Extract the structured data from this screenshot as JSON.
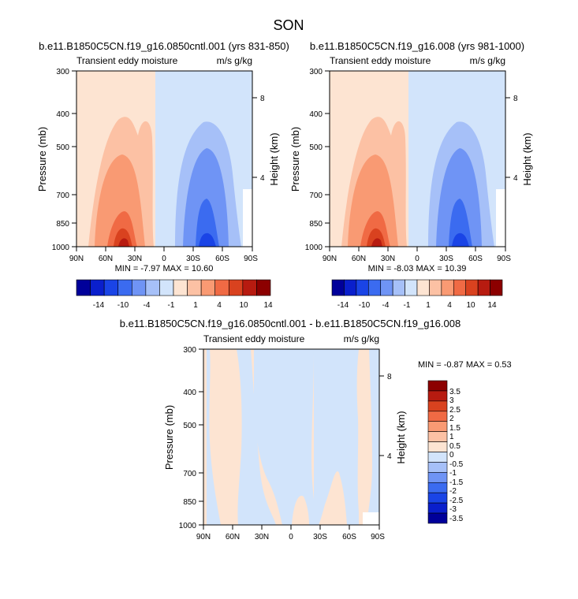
{
  "figure": {
    "title": "SON"
  },
  "colors": {
    "panel_palette": [
      "#00009a",
      "#0a1fcc",
      "#1a44e6",
      "#3b6bf0",
      "#6f94f5",
      "#a6c0f8",
      "#d2e4fb",
      "#fde4d2",
      "#fcc1a4",
      "#f99a73",
      "#f06a44",
      "#d9421f",
      "#b71b10",
      "#8c0000"
    ],
    "diff_palette": [
      "#00009a",
      "#0a1fcc",
      "#1a44e6",
      "#3b6bf0",
      "#6f94f5",
      "#a6c0f8",
      "#d2e4fb",
      "#fde4d2",
      "#fcc1a4",
      "#f99a73",
      "#f06a44",
      "#d9421f",
      "#b71b10",
      "#8c0000"
    ]
  },
  "chart_data": [
    {
      "type": "heatmap",
      "title": "b.e11.B1850C5CN.f19_g16.0850cntl.001 (yrs 831-850)",
      "subtitle_left": "Transient eddy moisture",
      "subtitle_right": "m/s g/kg",
      "xlabel": "",
      "ylabel": "Pressure (mb)",
      "ylabel_right": "Height (km)",
      "x_ticks": [
        "90N",
        "60N",
        "30N",
        "0",
        "30S",
        "60S",
        "90S"
      ],
      "y_ticks": [
        "300",
        "400",
        "500",
        "700",
        "850",
        "1000"
      ],
      "y_ticks_right": [
        "8",
        "4"
      ],
      "min_max_text": "MIN = -7.97   MAX = 10.60",
      "colorbar_labels": [
        "-14",
        "-10",
        "-4",
        "-1",
        "1",
        "4",
        "10",
        "14"
      ]
    },
    {
      "type": "heatmap",
      "title": "b.e11.B1850C5CN.f19_g16.008 (yrs 981-1000)",
      "subtitle_left": "Transient eddy moisture",
      "subtitle_right": "m/s g/kg",
      "xlabel": "",
      "ylabel": "Pressure (mb)",
      "ylabel_right": "Height (km)",
      "x_ticks": [
        "90N",
        "60N",
        "30N",
        "0",
        "30S",
        "60S",
        "90S"
      ],
      "y_ticks": [
        "300",
        "400",
        "500",
        "700",
        "850",
        "1000"
      ],
      "y_ticks_right": [
        "8",
        "4"
      ],
      "min_max_text": "MIN = -8.03   MAX = 10.39",
      "colorbar_labels": [
        "-14",
        "-10",
        "-4",
        "-1",
        "1",
        "4",
        "10",
        "14"
      ]
    },
    {
      "type": "heatmap",
      "title": "b.e11.B1850C5CN.f19_g16.0850cntl.001 - b.e11.B1850C5CN.f19_g16.008",
      "subtitle_left": "Transient eddy moisture",
      "subtitle_right": "m/s g/kg",
      "xlabel": "",
      "ylabel": "Pressure (mb)",
      "ylabel_right": "Height (km)",
      "x_ticks": [
        "90N",
        "60N",
        "30N",
        "0",
        "30S",
        "60S",
        "90S"
      ],
      "y_ticks": [
        "300",
        "400",
        "500",
        "700",
        "850",
        "1000"
      ],
      "y_ticks_right": [
        "8",
        "4"
      ],
      "min_max_text": "MIN = -0.87   MAX =  0.53",
      "colorbar_labels": [
        "3.5",
        "3",
        "2.5",
        "2",
        "1.5",
        "1",
        "0.5",
        "0",
        "-0.5",
        "-1",
        "-1.5",
        "-2",
        "-2.5",
        "-3",
        "-3.5"
      ]
    }
  ]
}
